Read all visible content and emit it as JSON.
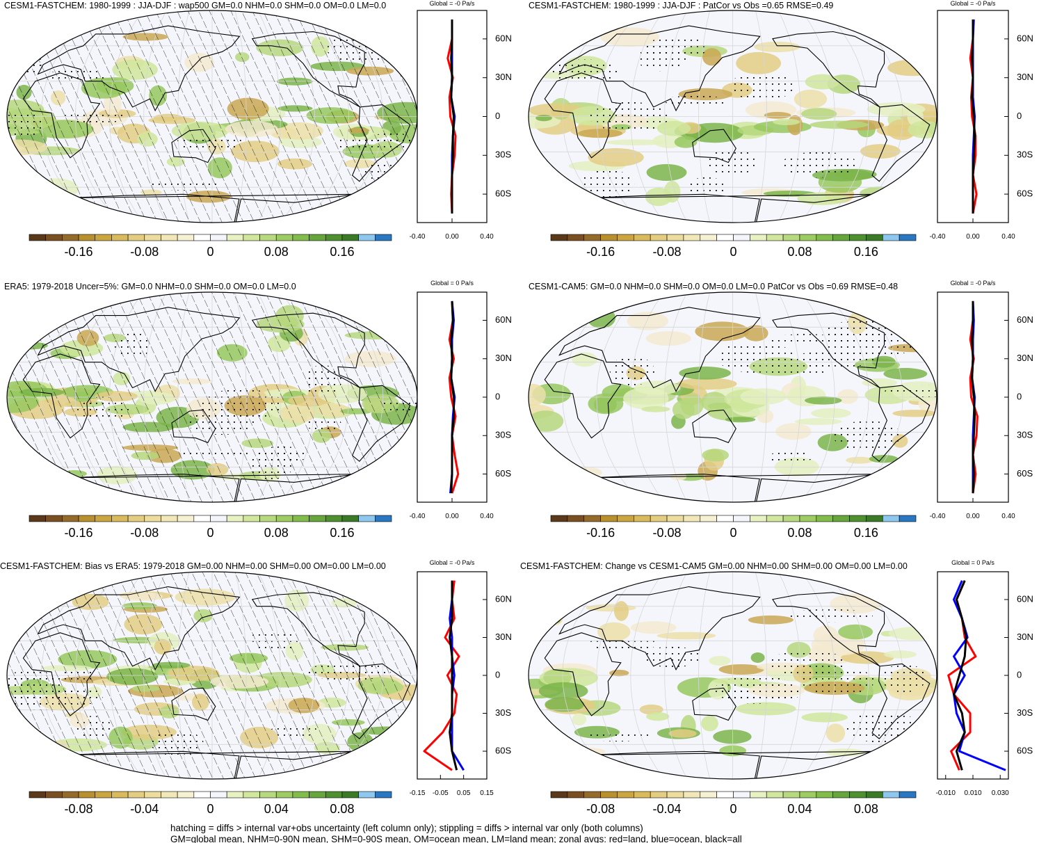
{
  "colorbar_colors": [
    "#5a3a1a",
    "#7a4f22",
    "#946b2b",
    "#b8902e",
    "#cba53f",
    "#d9ba5c",
    "#e4cd80",
    "#ecdc9d",
    "#f2e8b7",
    "#f7f1d4",
    "#ffffff",
    "#f3f5fb",
    "#e7f1c2",
    "#d1e79e",
    "#b8d97f",
    "#9dcc62",
    "#82bc4b",
    "#67a63d",
    "#4f9031",
    "#3b7a27",
    "#8ec8ee",
    "#2a78c2"
  ],
  "lat": [
    -75,
    -60,
    -45,
    -30,
    -15,
    0,
    15,
    30,
    45,
    60,
    75
  ],
  "panels": [
    {
      "title": "CESM1-FASTCHEM: 1980-1999 : JJA-DJF : wap500 GM=0.0 NHM=0.0 SHM=0.0 OM=0.0 LM=0.0",
      "hatching": true,
      "colorbar": {
        "lim": [
          -0.22,
          0.22
        ],
        "ticks": [
          -0.16,
          -0.08,
          0,
          0.08,
          0.16
        ]
      },
      "zonal": {
        "title": "Global = -0 Pa/s",
        "xlim": [
          -0.4,
          0.4
        ],
        "xticks": [
          {
            "value": -0.4,
            "label": "-0.40"
          },
          {
            "value": 0,
            "label": "0.00"
          },
          {
            "value": 0.4,
            "label": "0.40"
          }
        ],
        "ylim": [
          -82,
          82
        ],
        "yticks": [
          {
            "value": 60,
            "label": "60N"
          },
          {
            "value": 30,
            "label": "30N"
          },
          0,
          {
            "value": -30,
            "label": "30S"
          },
          {
            "value": -60,
            "label": "60S"
          }
        ],
        "series": [
          {
            "color": "#ff0000",
            "values": [
              0,
              -0.01,
              0,
              0.03,
              0.04,
              -0.02,
              -0.03,
              0.01,
              -0.05,
              0,
              0
            ]
          },
          {
            "color": "#0000ff",
            "values": [
              0,
              0,
              0,
              0,
              0.01,
              0.03,
              -0.01,
              0,
              0,
              0,
              0
            ]
          },
          {
            "color": "#000000",
            "values": [
              0,
              0,
              0,
              0.01,
              0.01,
              0.02,
              -0.01,
              0,
              -0.01,
              0,
              0
            ]
          }
        ]
      }
    },
    {
      "title": "CESM1-FASTCHEM: 1980-1999 : JJA-DJF : PatCor vs Obs =0.65 RMSE=0.49",
      "hatching": false,
      "colorbar": {
        "lim": [
          -0.22,
          0.22
        ],
        "ticks": [
          -0.16,
          -0.08,
          0,
          0.08,
          0.16
        ]
      },
      "zonal": {
        "title": "Global = -0 Pa/s",
        "xlim": [
          -0.4,
          0.4
        ],
        "xticks": [
          {
            "value": -0.4,
            "label": "-0.40"
          },
          {
            "value": 0,
            "label": "0.00"
          },
          {
            "value": 0.4,
            "label": "0.40"
          }
        ],
        "ylim": [
          -82,
          82
        ],
        "yticks": [
          {
            "value": 60,
            "label": "60N"
          },
          {
            "value": 30,
            "label": "30N"
          },
          0,
          {
            "value": -30,
            "label": "30S"
          },
          {
            "value": -60,
            "label": "60S"
          }
        ],
        "series": [
          {
            "color": "#ff0000",
            "values": [
              0,
              0.04,
              0,
              0.03,
              0.03,
              -0.01,
              -0.02,
              0,
              -0.03,
              0,
              0
            ]
          },
          {
            "color": "#0000ff",
            "values": [
              0,
              0,
              0,
              0,
              0.01,
              0.02,
              0,
              0,
              0,
              0,
              0.01
            ]
          },
          {
            "color": "#000000",
            "values": [
              0,
              0,
              0,
              0.01,
              0.02,
              0.01,
              -0.01,
              0,
              -0.01,
              0,
              0
            ]
          }
        ]
      }
    },
    {
      "title": "ERA5: 1979-2018 Uncer=5%: GM=0.0 NHM=0.0 SHM=0.0 OM=0.0 LM=0.0",
      "hatching": true,
      "colorbar": {
        "lim": [
          -0.22,
          0.22
        ],
        "ticks": [
          -0.16,
          -0.08,
          0,
          0.08,
          0.16
        ]
      },
      "zonal": {
        "title": "Global = 0 Pa/s",
        "xlim": [
          -0.4,
          0.4
        ],
        "xticks": [
          {
            "value": -0.4,
            "label": "-0.40"
          },
          {
            "value": 0,
            "label": "0.00"
          },
          {
            "value": 0.4,
            "label": "0.40"
          }
        ],
        "ylim": [
          -82,
          82
        ],
        "yticks": [
          {
            "value": 60,
            "label": "60N"
          },
          {
            "value": 30,
            "label": "30N"
          },
          0,
          {
            "value": -30,
            "label": "30S"
          },
          {
            "value": -60,
            "label": "60S"
          }
        ],
        "series": [
          {
            "color": "#ff0000",
            "values": [
              0,
              0.07,
              0.03,
              0,
              0.04,
              -0.01,
              -0.03,
              0.02,
              -0.03,
              0.01,
              0
            ]
          },
          {
            "color": "#0000ff",
            "values": [
              -0.02,
              0,
              0,
              0,
              0.01,
              0.03,
              -0.01,
              0,
              0,
              0.02,
              0
            ]
          },
          {
            "color": "#000000",
            "values": [
              -0.01,
              0,
              0,
              0,
              0.02,
              0.02,
              -0.01,
              0,
              -0.01,
              0.01,
              0
            ]
          }
        ]
      }
    },
    {
      "title": "CESM1-CAM5: GM=0.0 NHM=0.0 SHM=0.0 OM=0.0 LM=0.0 PatCor vs Obs =0.69 RMSE=0.48",
      "hatching": false,
      "colorbar": {
        "lim": [
          -0.22,
          0.22
        ],
        "ticks": [
          -0.16,
          -0.08,
          0,
          0.08,
          0.16
        ]
      },
      "zonal": {
        "title": "Global = -0 Pa/s",
        "xlim": [
          -0.4,
          0.4
        ],
        "xticks": [
          {
            "value": -0.4,
            "label": "-0.40"
          },
          {
            "value": 0,
            "label": "0.00"
          },
          {
            "value": 0.4,
            "label": "0.40"
          }
        ],
        "ylim": [
          -82,
          82
        ],
        "yticks": [
          {
            "value": 60,
            "label": "60N"
          },
          {
            "value": 30,
            "label": "30N"
          },
          0,
          {
            "value": -30,
            "label": "30S"
          },
          {
            "value": -60,
            "label": "60S"
          }
        ],
        "series": [
          {
            "color": "#ff0000",
            "values": [
              0,
              0.03,
              0,
              0.04,
              0.05,
              -0.02,
              -0.03,
              0.01,
              -0.03,
              0,
              0
            ]
          },
          {
            "color": "#0000ff",
            "values": [
              0,
              0,
              0,
              0,
              0.01,
              0.02,
              -0.01,
              0,
              0,
              0.01,
              0
            ]
          },
          {
            "color": "#000000",
            "values": [
              0,
              0.01,
              0,
              0.01,
              0.02,
              0.01,
              -0.01,
              0,
              -0.01,
              0,
              0
            ]
          }
        ]
      }
    },
    {
      "title": "CESM1-FASTCHEM: Bias vs ERA5: 1979-2018 GM=0.00 NHM=0.00 SHM=0.00 OM=0.00 LM=0.00",
      "hatching": true,
      "colorbar": {
        "lim": [
          -0.11,
          0.11
        ],
        "ticks": [
          -0.08,
          -0.04,
          0,
          0.04,
          0.08
        ]
      },
      "zonal": {
        "title": "Global = -0 Pa/s",
        "xlim": [
          -0.15,
          0.15
        ],
        "xticks": [
          -0.15,
          -0.05,
          0.05,
          0.15
        ],
        "ylim": [
          -82,
          82
        ],
        "yticks": [
          {
            "value": 60,
            "label": "60N"
          },
          {
            "value": 30,
            "label": "30N"
          },
          0,
          {
            "value": -30,
            "label": "30S"
          },
          {
            "value": -60,
            "label": "60S"
          }
        ],
        "series": [
          {
            "color": "#ff0000",
            "values": [
              0,
              -0.12,
              -0.04,
              0.01,
              0.02,
              -0.02,
              0.03,
              -0.03,
              0.01,
              0,
              0.01
            ]
          },
          {
            "color": "#0000ff",
            "values": [
              0.05,
              0,
              0,
              0,
              0,
              0.01,
              0,
              0,
              -0.01,
              0,
              0
            ]
          },
          {
            "color": "#000000",
            "values": [
              0.02,
              0,
              -0.01,
              0,
              0,
              0,
              0,
              -0.01,
              0,
              0,
              0
            ]
          }
        ]
      }
    },
    {
      "title": "CESM1-FASTCHEM: Change vs CESM1-CAM5 GM=0.00 NHM=0.00 SHM=0.00 OM=0.00 LM=0.00",
      "hatching": false,
      "colorbar": {
        "lim": [
          -0.11,
          0.11
        ],
        "ticks": [
          -0.08,
          -0.04,
          0,
          0.04,
          0.08
        ]
      },
      "zonal": {
        "title": "Global = 0 Pa/s",
        "xlim": [
          -0.016,
          0.036
        ],
        "xticks": [
          {
            "value": -0.01,
            "label": "-0.010"
          },
          {
            "value": 0.01,
            "label": "0.010"
          },
          {
            "value": 0.03,
            "label": "0.030"
          }
        ],
        "ylim": [
          -82,
          82
        ],
        "yticks": [
          {
            "value": 60,
            "label": "60N"
          },
          {
            "value": 30,
            "label": "30N"
          },
          0,
          {
            "value": -30,
            "label": "30S"
          },
          {
            "value": -60,
            "label": "60S"
          }
        ],
        "series": [
          {
            "color": "#ff0000",
            "values": [
              0,
              -0.006,
              0.008,
              0.008,
              -0.004,
              -0.008,
              0.012,
              0.004,
              0.002,
              -0.002,
              0.004
            ]
          },
          {
            "color": "#0000ff",
            "values": [
              0.034,
              0,
              0.004,
              -0.002,
              -0.004,
              0.004,
              -0.004,
              0.006,
              0.002,
              -0.004,
              0.002
            ]
          },
          {
            "color": "#000000",
            "values": [
              0.002,
              -0.002,
              0.004,
              0.002,
              -0.004,
              0,
              0.004,
              0.005,
              0.002,
              -0.002,
              0.004
            ]
          }
        ]
      }
    }
  ],
  "footer": [
    "hatching = diffs > internal var+obs uncertainty (left column only); stippling = diffs > internal var only (both columns)",
    "GM=global mean, NHM=0-90N mean, SHM=0-90S mean, OM=ocean mean, LM=land mean; zonal avgs: red=land, blue=ocean, black=all"
  ]
}
